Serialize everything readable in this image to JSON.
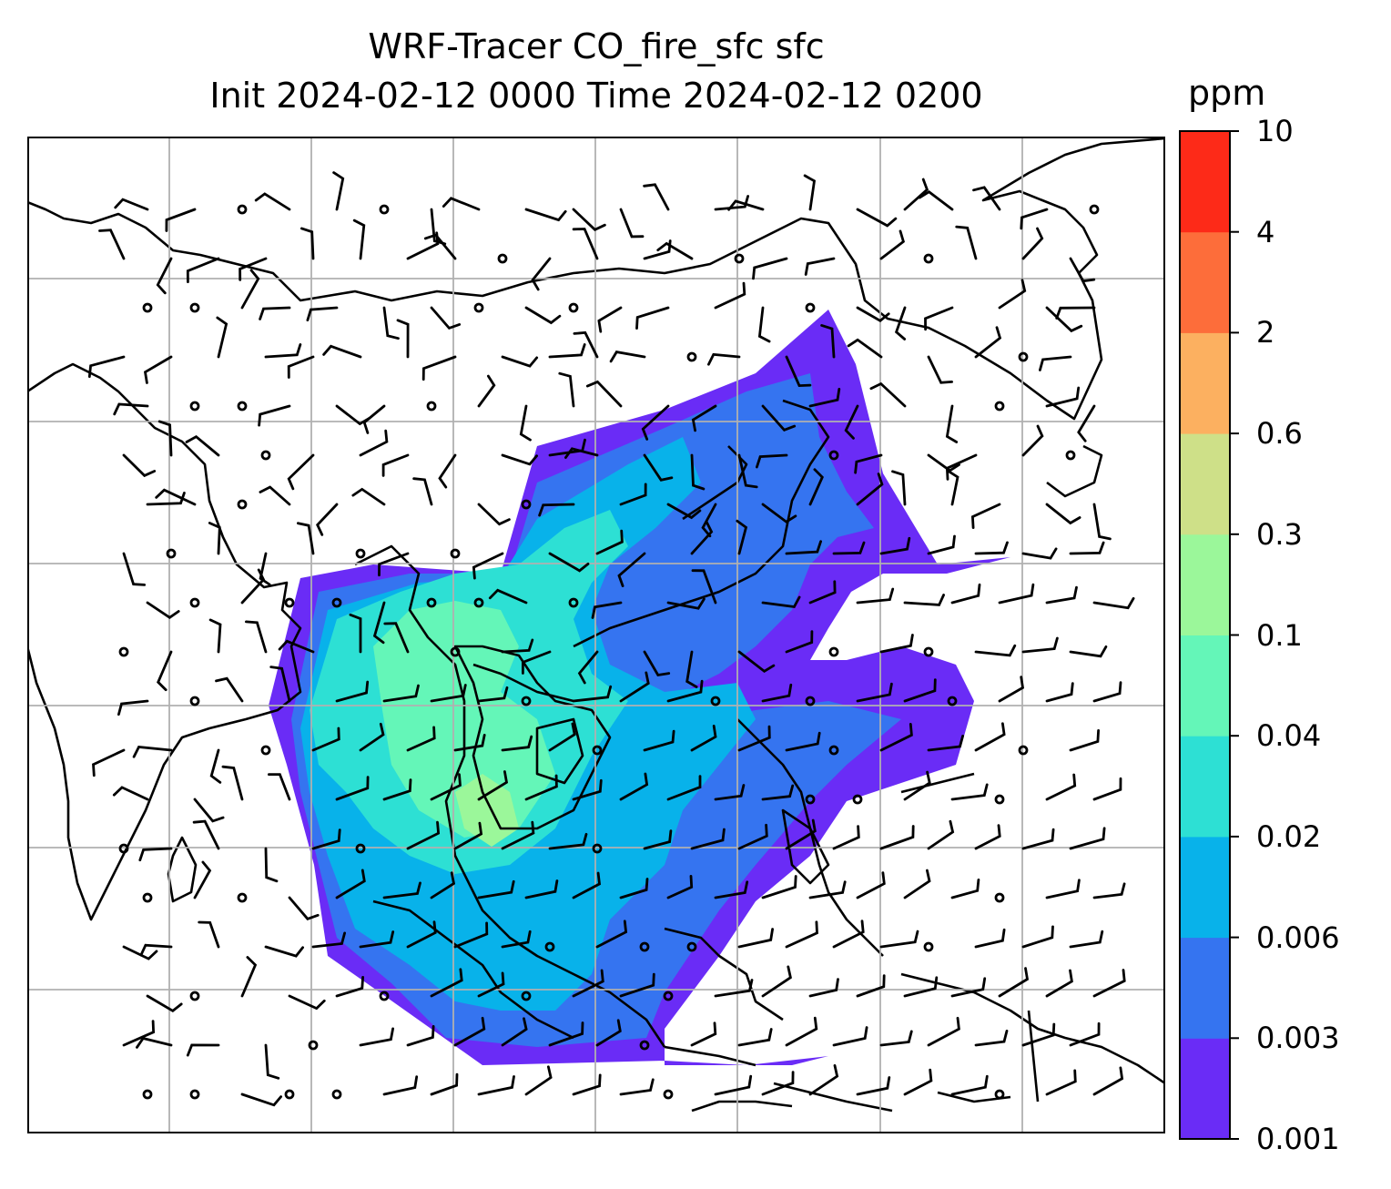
{
  "figure": {
    "title_line1": "WRF-Tracer CO_fire_sfc sfc",
    "title_line2": "Init 2024-02-12 0000 Time 2024-02-12 0200"
  },
  "colorbar": {
    "unit": "ppm",
    "levels": [
      "0.001",
      "0.003",
      "0.006",
      "0.02",
      "0.04",
      "0.1",
      "0.3",
      "0.6",
      "2",
      "4",
      "10"
    ],
    "colors": [
      "#6a2cf6",
      "#3574f0",
      "#08b2ea",
      "#2de0d4",
      "#64f6b8",
      "#9bf79a",
      "#cee088",
      "#fcb060",
      "#fd6d3a",
      "#fd2a18"
    ]
  },
  "map": {
    "gridlines": true,
    "coastline_color": "#000000",
    "grid_color": "#b0b0b0",
    "plume_levels_present": [
      "0.001",
      "0.003",
      "0.006",
      "0.02",
      "0.04",
      "0.1"
    ]
  }
}
